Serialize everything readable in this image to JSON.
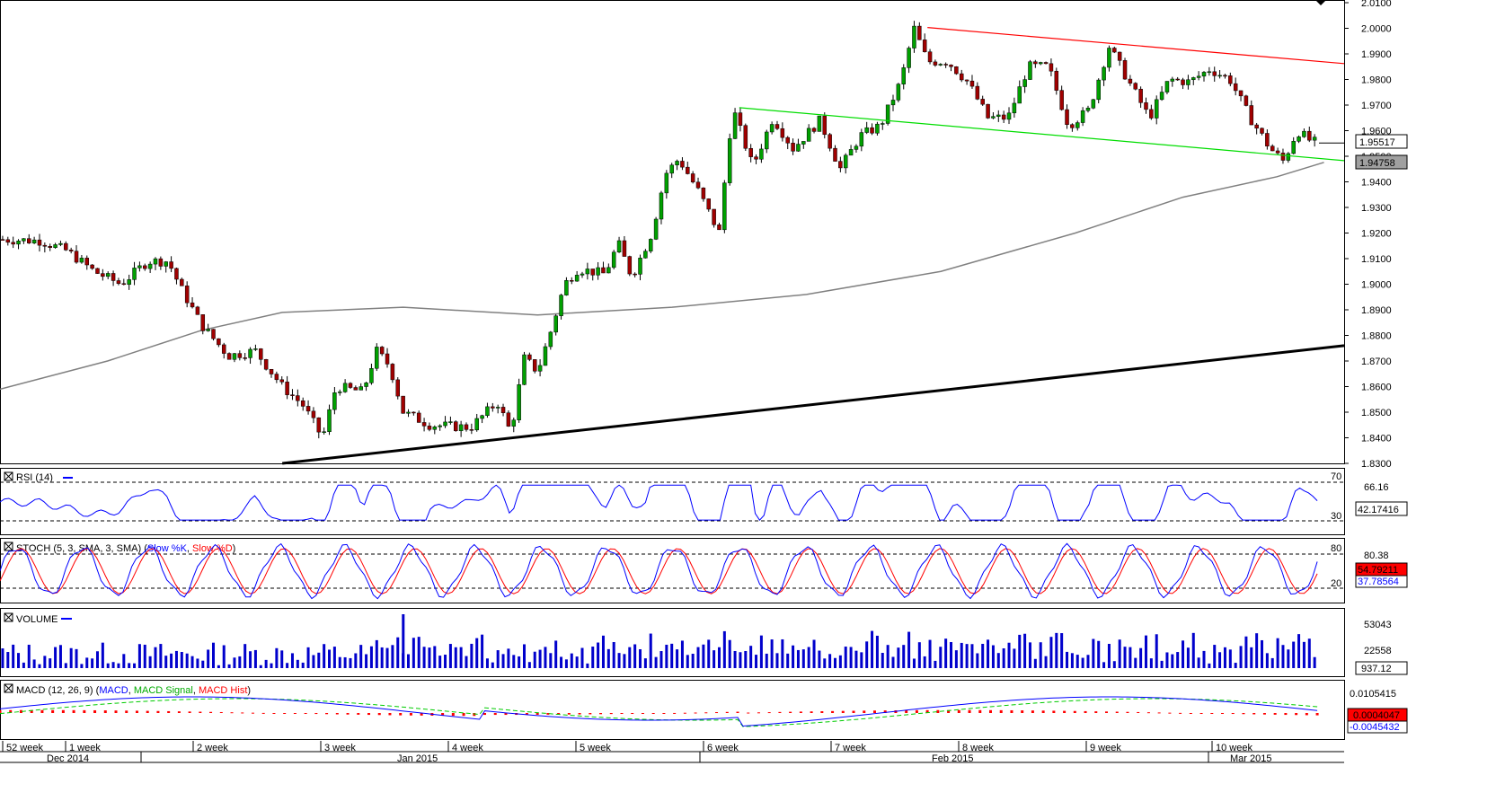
{
  "main": {
    "price_axis": [
      "2.0100",
      "2.0000",
      "1.9900",
      "1.9800",
      "1.9700",
      "1.9600",
      "1.9500",
      "1.9400",
      "1.9300",
      "1.9200",
      "1.9100",
      "1.9000",
      "1.8900",
      "1.8800",
      "1.8700",
      "1.8600",
      "1.8500",
      "1.8400",
      "1.8300"
    ],
    "price_min": 1.83,
    "price_max": 2.01,
    "current_price_label": "1.95517",
    "ma_value_label": "1.94758",
    "colors": {
      "bull": "#00a000",
      "bear": "#a00000",
      "ma": "#808080",
      "channel_upper": "#ff0000",
      "channel_lower": "#00dd00",
      "trendline": "#000000"
    }
  },
  "rsi": {
    "title": "RSI (14)",
    "levels": [
      "70",
      "30"
    ],
    "axis_labels": [
      "66.16"
    ],
    "value_label": "42.17416",
    "color": "#0000ff"
  },
  "stoch": {
    "title_prefix": "STOCH (5, 3, SMA, 3, SMA) (",
    "k_label": "Slow %K",
    "separator": ", ",
    "d_label": "Slow %D",
    "title_suffix": ")",
    "levels": [
      "80",
      "20"
    ],
    "axis_labels": [
      "80.38"
    ],
    "value_d_label": "54.79211",
    "value_k_label": "37.78564",
    "k_color": "#0000ff",
    "d_color": "#ff0000"
  },
  "volume": {
    "title": "VOLUME",
    "axis_labels": [
      "53043",
      "22558"
    ],
    "value_label": "937.12",
    "color": "#0000cc"
  },
  "macd": {
    "title_prefix": "MACD (12, 26, 9) (",
    "macd_label": "MACD",
    "separator": ", ",
    "signal_label": "MACD Signal",
    "hist_label": "MACD Hist",
    "title_suffix": ")",
    "axis_labels": [
      "0.0105415"
    ],
    "value_hist_label": "0.0004047",
    "value_macd_label": "-0.0045432",
    "macd_color": "#0000ff",
    "signal_color": "#00cc00",
    "hist_color": "#ff0000"
  },
  "time_axis": {
    "weeks": [
      "52 week",
      "1 week",
      "2 week",
      "3 week",
      "4 week",
      "5 week",
      "6 week",
      "7 week",
      "8 week",
      "9 week",
      "10 week"
    ],
    "months": [
      "Dec 2014",
      "Jan 2015",
      "Feb 2015",
      "Mar 2015"
    ]
  },
  "chart_data": {
    "type": "candlestick",
    "symbol_timeframe": "",
    "y_range": [
      1.83,
      2.01
    ],
    "key_levels": [
      {
        "name": "last",
        "value": 1.95517
      },
      {
        "name": "moving_average",
        "value": 1.94758
      }
    ],
    "channel_upper": [
      [
        0.69,
        2.0003
      ],
      [
        1.0,
        1.9862
      ]
    ],
    "channel_lower": [
      [
        0.55,
        1.969
      ],
      [
        1.0,
        1.9483
      ]
    ],
    "trendline": [
      [
        0.21,
        1.83
      ],
      [
        1.0,
        1.876
      ]
    ],
    "moving_average_path": [
      [
        0.0,
        1.859
      ],
      [
        0.08,
        1.87
      ],
      [
        0.15,
        1.882
      ],
      [
        0.21,
        1.889
      ],
      [
        0.3,
        1.891
      ],
      [
        0.4,
        1.888
      ],
      [
        0.5,
        1.891
      ],
      [
        0.6,
        1.896
      ],
      [
        0.7,
        1.905
      ],
      [
        0.8,
        1.92
      ],
      [
        0.88,
        1.934
      ],
      [
        0.95,
        1.942
      ],
      [
        0.985,
        1.9476
      ]
    ],
    "price_path": [
      [
        0.0,
        1.9175
      ],
      [
        0.03,
        1.917
      ],
      [
        0.05,
        1.913
      ],
      [
        0.07,
        1.905
      ],
      [
        0.09,
        1.9
      ],
      [
        0.11,
        1.909
      ],
      [
        0.125,
        1.909
      ],
      [
        0.135,
        1.898
      ],
      [
        0.15,
        1.884
      ],
      [
        0.17,
        1.872
      ],
      [
        0.19,
        1.874
      ],
      [
        0.21,
        1.86
      ],
      [
        0.225,
        1.853
      ],
      [
        0.24,
        1.84
      ],
      [
        0.25,
        1.86
      ],
      [
        0.27,
        1.858
      ],
      [
        0.28,
        1.874
      ],
      [
        0.29,
        1.868
      ],
      [
        0.3,
        1.85
      ],
      [
        0.32,
        1.845
      ],
      [
        0.35,
        1.844
      ],
      [
        0.37,
        1.854
      ],
      [
        0.38,
        1.842
      ],
      [
        0.39,
        1.871
      ],
      [
        0.4,
        1.866
      ],
      [
        0.41,
        1.882
      ],
      [
        0.42,
        1.9
      ],
      [
        0.43,
        1.906
      ],
      [
        0.45,
        1.904
      ],
      [
        0.46,
        1.916
      ],
      [
        0.47,
        1.903
      ],
      [
        0.485,
        1.92
      ],
      [
        0.495,
        1.943
      ],
      [
        0.505,
        1.949
      ],
      [
        0.52,
        1.936
      ],
      [
        0.535,
        1.92
      ],
      [
        0.545,
        1.969
      ],
      [
        0.56,
        1.946
      ],
      [
        0.575,
        1.965
      ],
      [
        0.59,
        1.953
      ],
      [
        0.61,
        1.964
      ],
      [
        0.625,
        1.945
      ],
      [
        0.64,
        1.958
      ],
      [
        0.655,
        1.962
      ],
      [
        0.67,
        1.979
      ],
      [
        0.68,
        2.0
      ],
      [
        0.69,
        1.987
      ],
      [
        0.705,
        1.987
      ],
      [
        0.72,
        1.979
      ],
      [
        0.735,
        1.965
      ],
      [
        0.75,
        1.965
      ],
      [
        0.765,
        1.985
      ],
      [
        0.78,
        1.985
      ],
      [
        0.795,
        1.962
      ],
      [
        0.81,
        1.968
      ],
      [
        0.825,
        1.993
      ],
      [
        0.84,
        1.979
      ],
      [
        0.855,
        1.965
      ],
      [
        0.87,
        1.98
      ],
      [
        0.885,
        1.979
      ],
      [
        0.9,
        1.984
      ],
      [
        0.915,
        1.98
      ],
      [
        0.93,
        1.965
      ],
      [
        0.945,
        1.953
      ],
      [
        0.955,
        1.948
      ],
      [
        0.965,
        1.96
      ],
      [
        0.975,
        1.956
      ],
      [
        0.98,
        1.9552
      ]
    ]
  }
}
